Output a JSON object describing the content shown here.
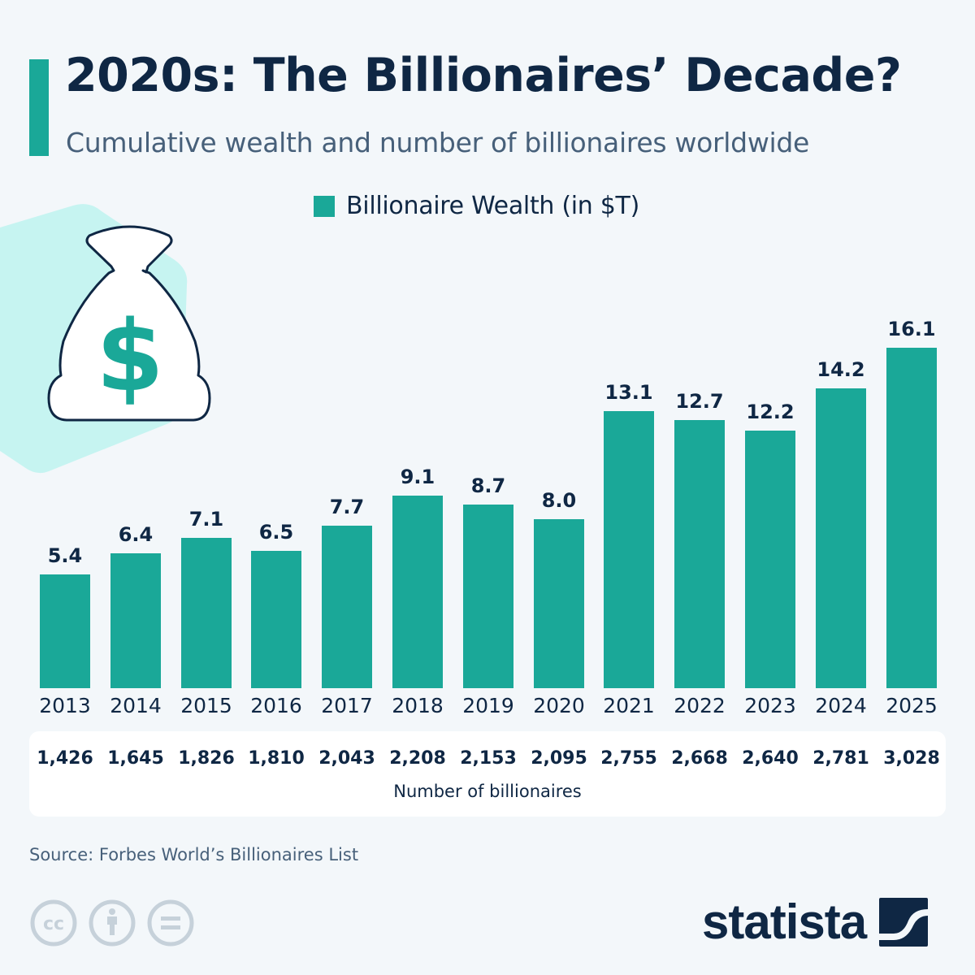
{
  "header": {
    "title": "2020s: The Billionaires’ Decade?",
    "subtitle": "Cumulative wealth and number of billionaires worldwide"
  },
  "legend": {
    "label": "Billionaire Wealth (in $T)",
    "color": "#1aa898"
  },
  "counts_label": "Number of billionaires",
  "footer": {
    "source": "Source: Forbes World’s Billionaires List",
    "brand": "statista",
    "license_icons": [
      "cc-icon",
      "attribution-icon",
      "no-derivatives-icon"
    ]
  },
  "decoration": {
    "icon": "money-bag-icon"
  },
  "colors": {
    "bar": "#1aa898",
    "text": "#0f2744",
    "background": "#f3f7fa",
    "blob": "#c6f4f1"
  },
  "chart_data": {
    "type": "bar",
    "title": "2020s: The Billionaires’ Decade?",
    "subtitle": "Cumulative wealth and number of billionaires worldwide",
    "categories": [
      "2013",
      "2014",
      "2015",
      "2016",
      "2017",
      "2018",
      "2019",
      "2020",
      "2021",
      "2022",
      "2023",
      "2024",
      "2025"
    ],
    "series": [
      {
        "name": "Billionaire Wealth (in $T)",
        "values": [
          5.4,
          6.4,
          7.1,
          6.5,
          7.7,
          9.1,
          8.7,
          8.0,
          13.1,
          12.7,
          12.2,
          14.2,
          16.1
        ]
      }
    ],
    "value_labels": [
      "5.4",
      "6.4",
      "7.1",
      "6.5",
      "7.7",
      "9.1",
      "8.7",
      "8.0",
      "13.1",
      "12.7",
      "12.2",
      "14.2",
      "16.1"
    ],
    "billionaire_counts": [
      "1,426",
      "1,645",
      "1,826",
      "1,810",
      "2,043",
      "2,208",
      "2,153",
      "2,095",
      "2,755",
      "2,668",
      "2,640",
      "2,781",
      "3,028"
    ],
    "billionaire_counts_label": "Number of billionaires",
    "xlabel": "",
    "ylabel": "",
    "legend_position": "top",
    "grid": false,
    "source": "Forbes World’s Billionaires List"
  }
}
